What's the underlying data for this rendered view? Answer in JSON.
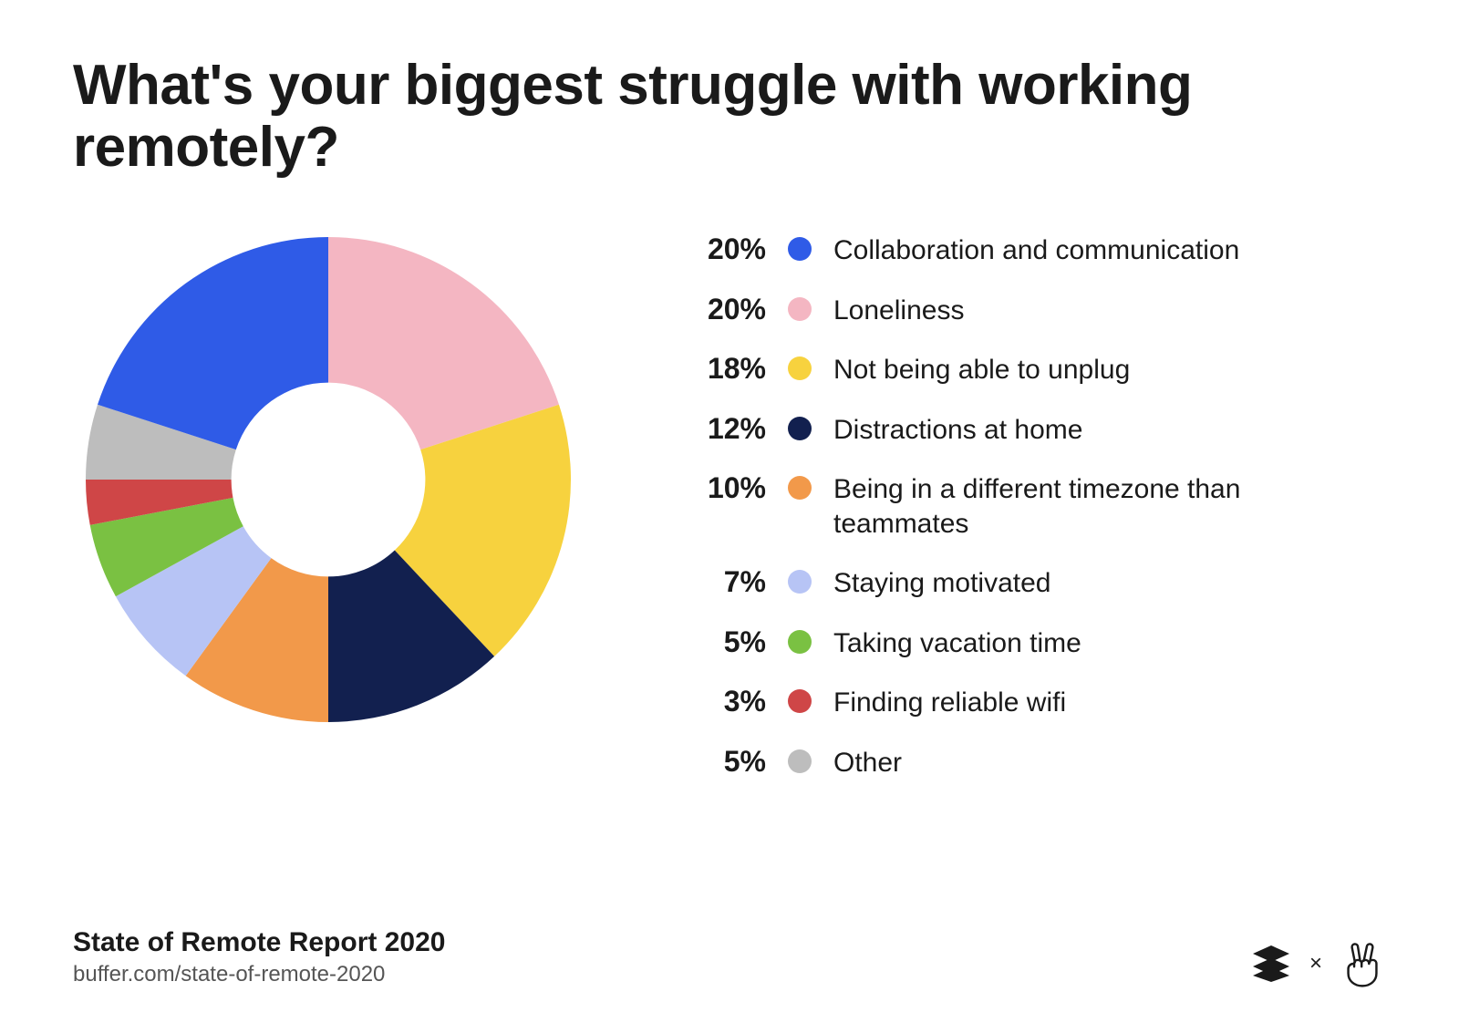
{
  "title": "What's your biggest struggle with working remotely?",
  "chart": {
    "type": "donut",
    "inner_radius_ratio": 0.4,
    "start_angle_deg": -90,
    "direction": "clockwise",
    "background_color": "#ffffff",
    "slice_order_in_ring": [
      "loneliness",
      "unplug",
      "distractions",
      "timezone",
      "motivated",
      "vacation",
      "wifi",
      "other",
      "collaboration"
    ],
    "slices": {
      "collaboration": {
        "percent": 20,
        "label": "Collaboration and communication",
        "color": "#2f5be7"
      },
      "loneliness": {
        "percent": 20,
        "label": "Loneliness",
        "color": "#f4b6c2"
      },
      "unplug": {
        "percent": 18,
        "label": "Not being able to unplug",
        "color": "#f7d23e"
      },
      "distractions": {
        "percent": 12,
        "label": "Distractions at home",
        "color": "#12204f"
      },
      "timezone": {
        "percent": 10,
        "label": "Being in a different timezone than teammates",
        "color": "#f2994a"
      },
      "motivated": {
        "percent": 7,
        "label": "Staying motivated",
        "color": "#b7c4f5"
      },
      "vacation": {
        "percent": 5,
        "label": "Taking vacation time",
        "color": "#7ac142"
      },
      "wifi": {
        "percent": 3,
        "label": "Finding reliable wifi",
        "color": "#cf4647"
      },
      "other": {
        "percent": 5,
        "label": "Other",
        "color": "#bdbdbd"
      }
    },
    "legend_order": [
      "collaboration",
      "loneliness",
      "unplug",
      "distractions",
      "timezone",
      "motivated",
      "vacation",
      "wifi",
      "other"
    ],
    "legend_percent_fontsize": 32,
    "legend_percent_fontweight": 800,
    "legend_label_fontsize": 30,
    "legend_dot_size": 26
  },
  "footer": {
    "title": "State of Remote Report 2020",
    "url": "buffer.com/state-of-remote-2020"
  },
  "logos": {
    "separator": "×",
    "buffer_icon": "buffer-icon",
    "peace_icon": "peace-hand-icon",
    "icon_color": "#1a1a1a"
  },
  "typography": {
    "title_fontsize": 62,
    "title_fontweight": 800,
    "footer_title_fontsize": 30,
    "footer_url_fontsize": 24,
    "text_color": "#1a1a1a",
    "muted_color": "#555555"
  }
}
